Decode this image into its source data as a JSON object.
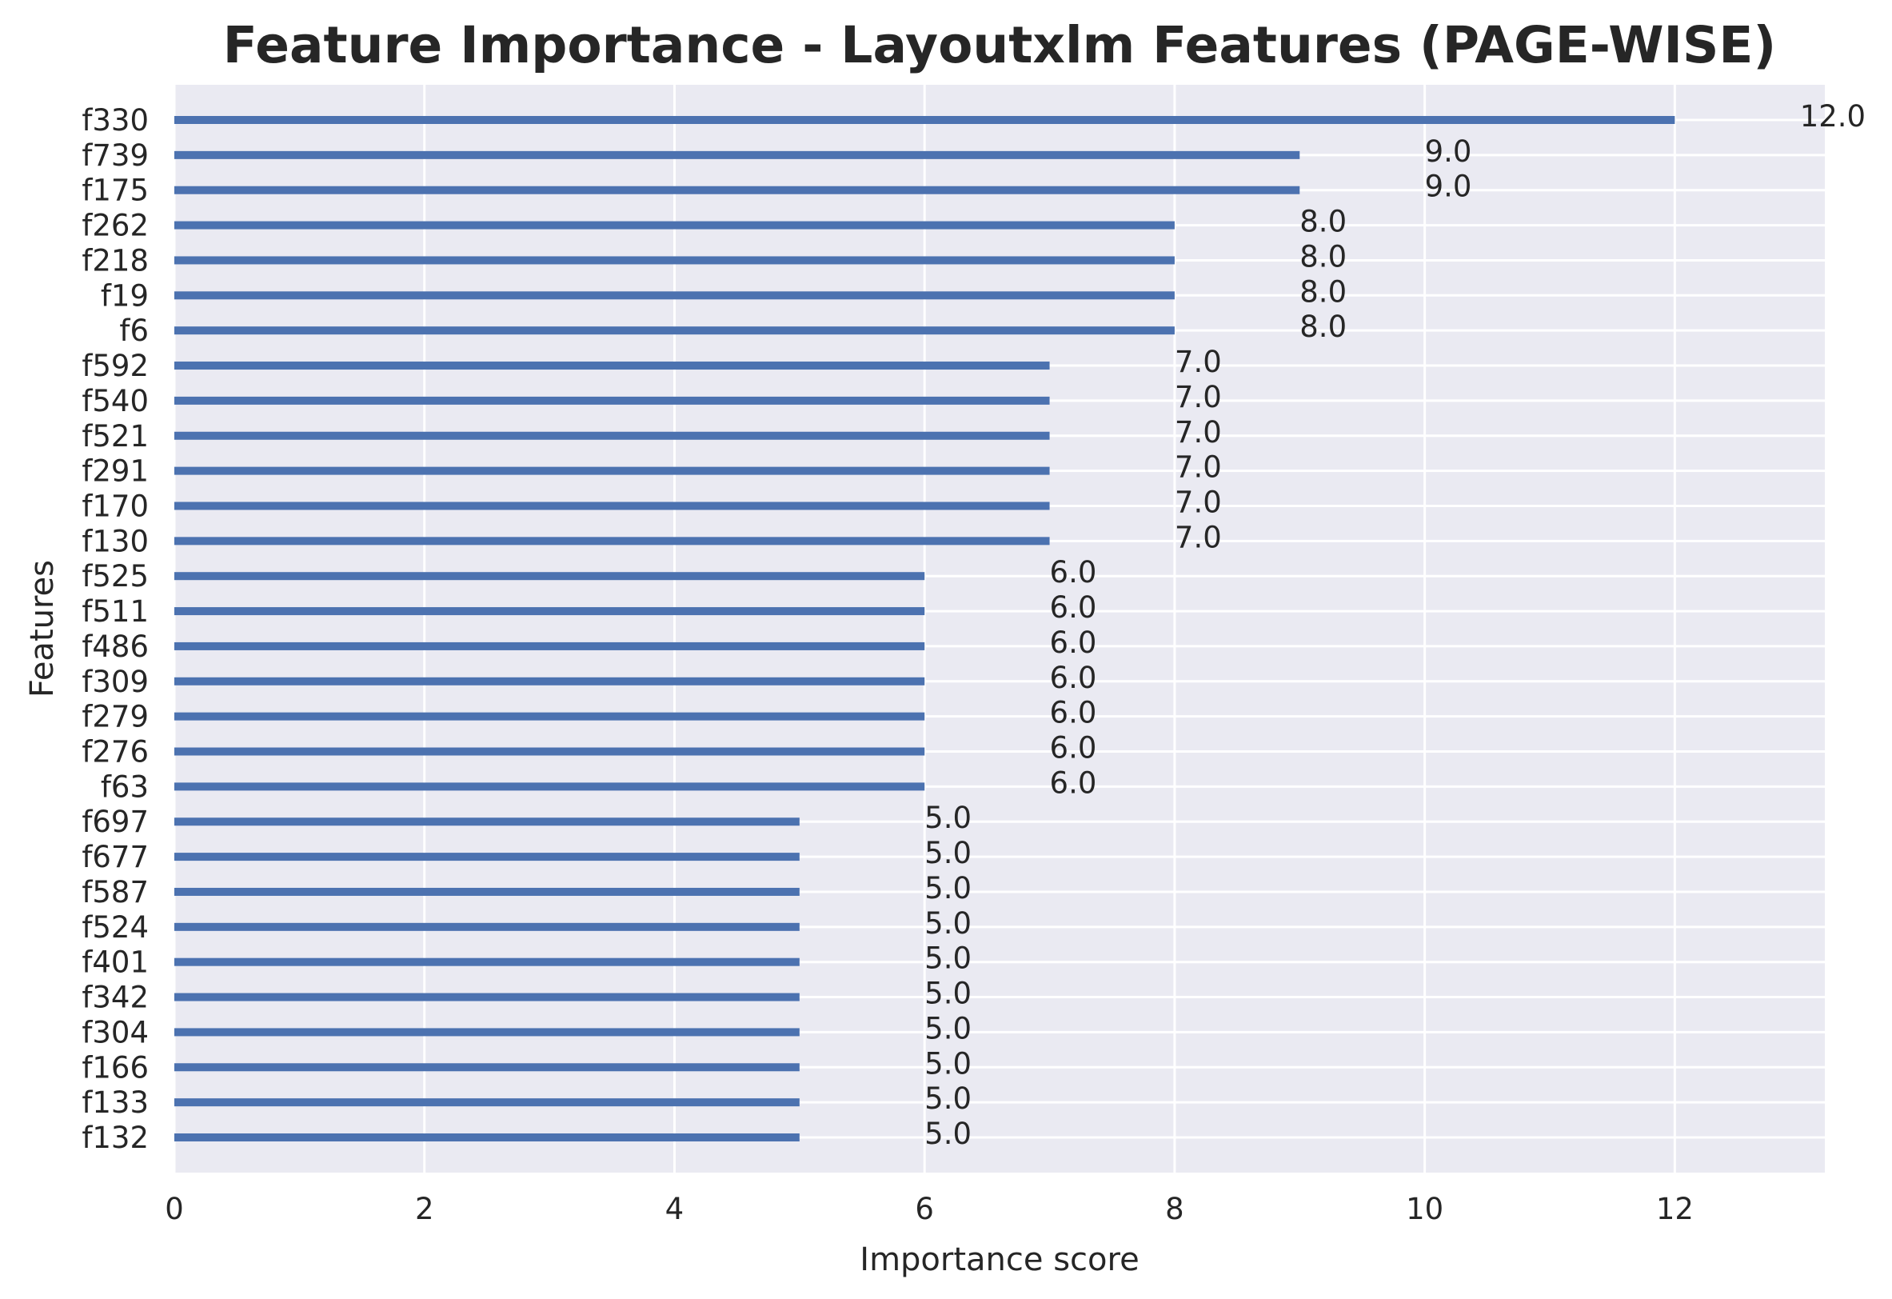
{
  "chart_data": {
    "type": "bar",
    "orientation": "horizontal",
    "title": "Feature Importance - Layoutxlm Features (PAGE-WISE)",
    "xlabel": "Importance score",
    "ylabel": "Features",
    "xlim": [
      0,
      13.2
    ],
    "xticks": [
      0,
      2,
      4,
      6,
      8,
      10,
      12
    ],
    "grid": true,
    "legend": "none",
    "colors": {
      "bar": "#4c72b0",
      "plot_background": "#eaeaf2",
      "grid": "#ffffff"
    },
    "categories": [
      "f330",
      "f739",
      "f175",
      "f262",
      "f218",
      "f19",
      "f6",
      "f592",
      "f540",
      "f521",
      "f291",
      "f170",
      "f130",
      "f525",
      "f511",
      "f486",
      "f309",
      "f279",
      "f276",
      "f63",
      "f697",
      "f677",
      "f587",
      "f524",
      "f401",
      "f342",
      "f304",
      "f166",
      "f133",
      "f132"
    ],
    "values": [
      12,
      9,
      9,
      8,
      8,
      8,
      8,
      7,
      7,
      7,
      7,
      7,
      7,
      6,
      6,
      6,
      6,
      6,
      6,
      6,
      5,
      5,
      5,
      5,
      5,
      5,
      5,
      5,
      5,
      5
    ],
    "data_labels": [
      "12.0",
      "9.0",
      "9.0",
      "8.0",
      "8.0",
      "8.0",
      "8.0",
      "7.0",
      "7.0",
      "7.0",
      "7.0",
      "7.0",
      "7.0",
      "6.0",
      "6.0",
      "6.0",
      "6.0",
      "6.0",
      "6.0",
      "6.0",
      "5.0",
      "5.0",
      "5.0",
      "5.0",
      "5.0",
      "5.0",
      "5.0",
      "5.0",
      "5.0",
      "5.0"
    ]
  }
}
